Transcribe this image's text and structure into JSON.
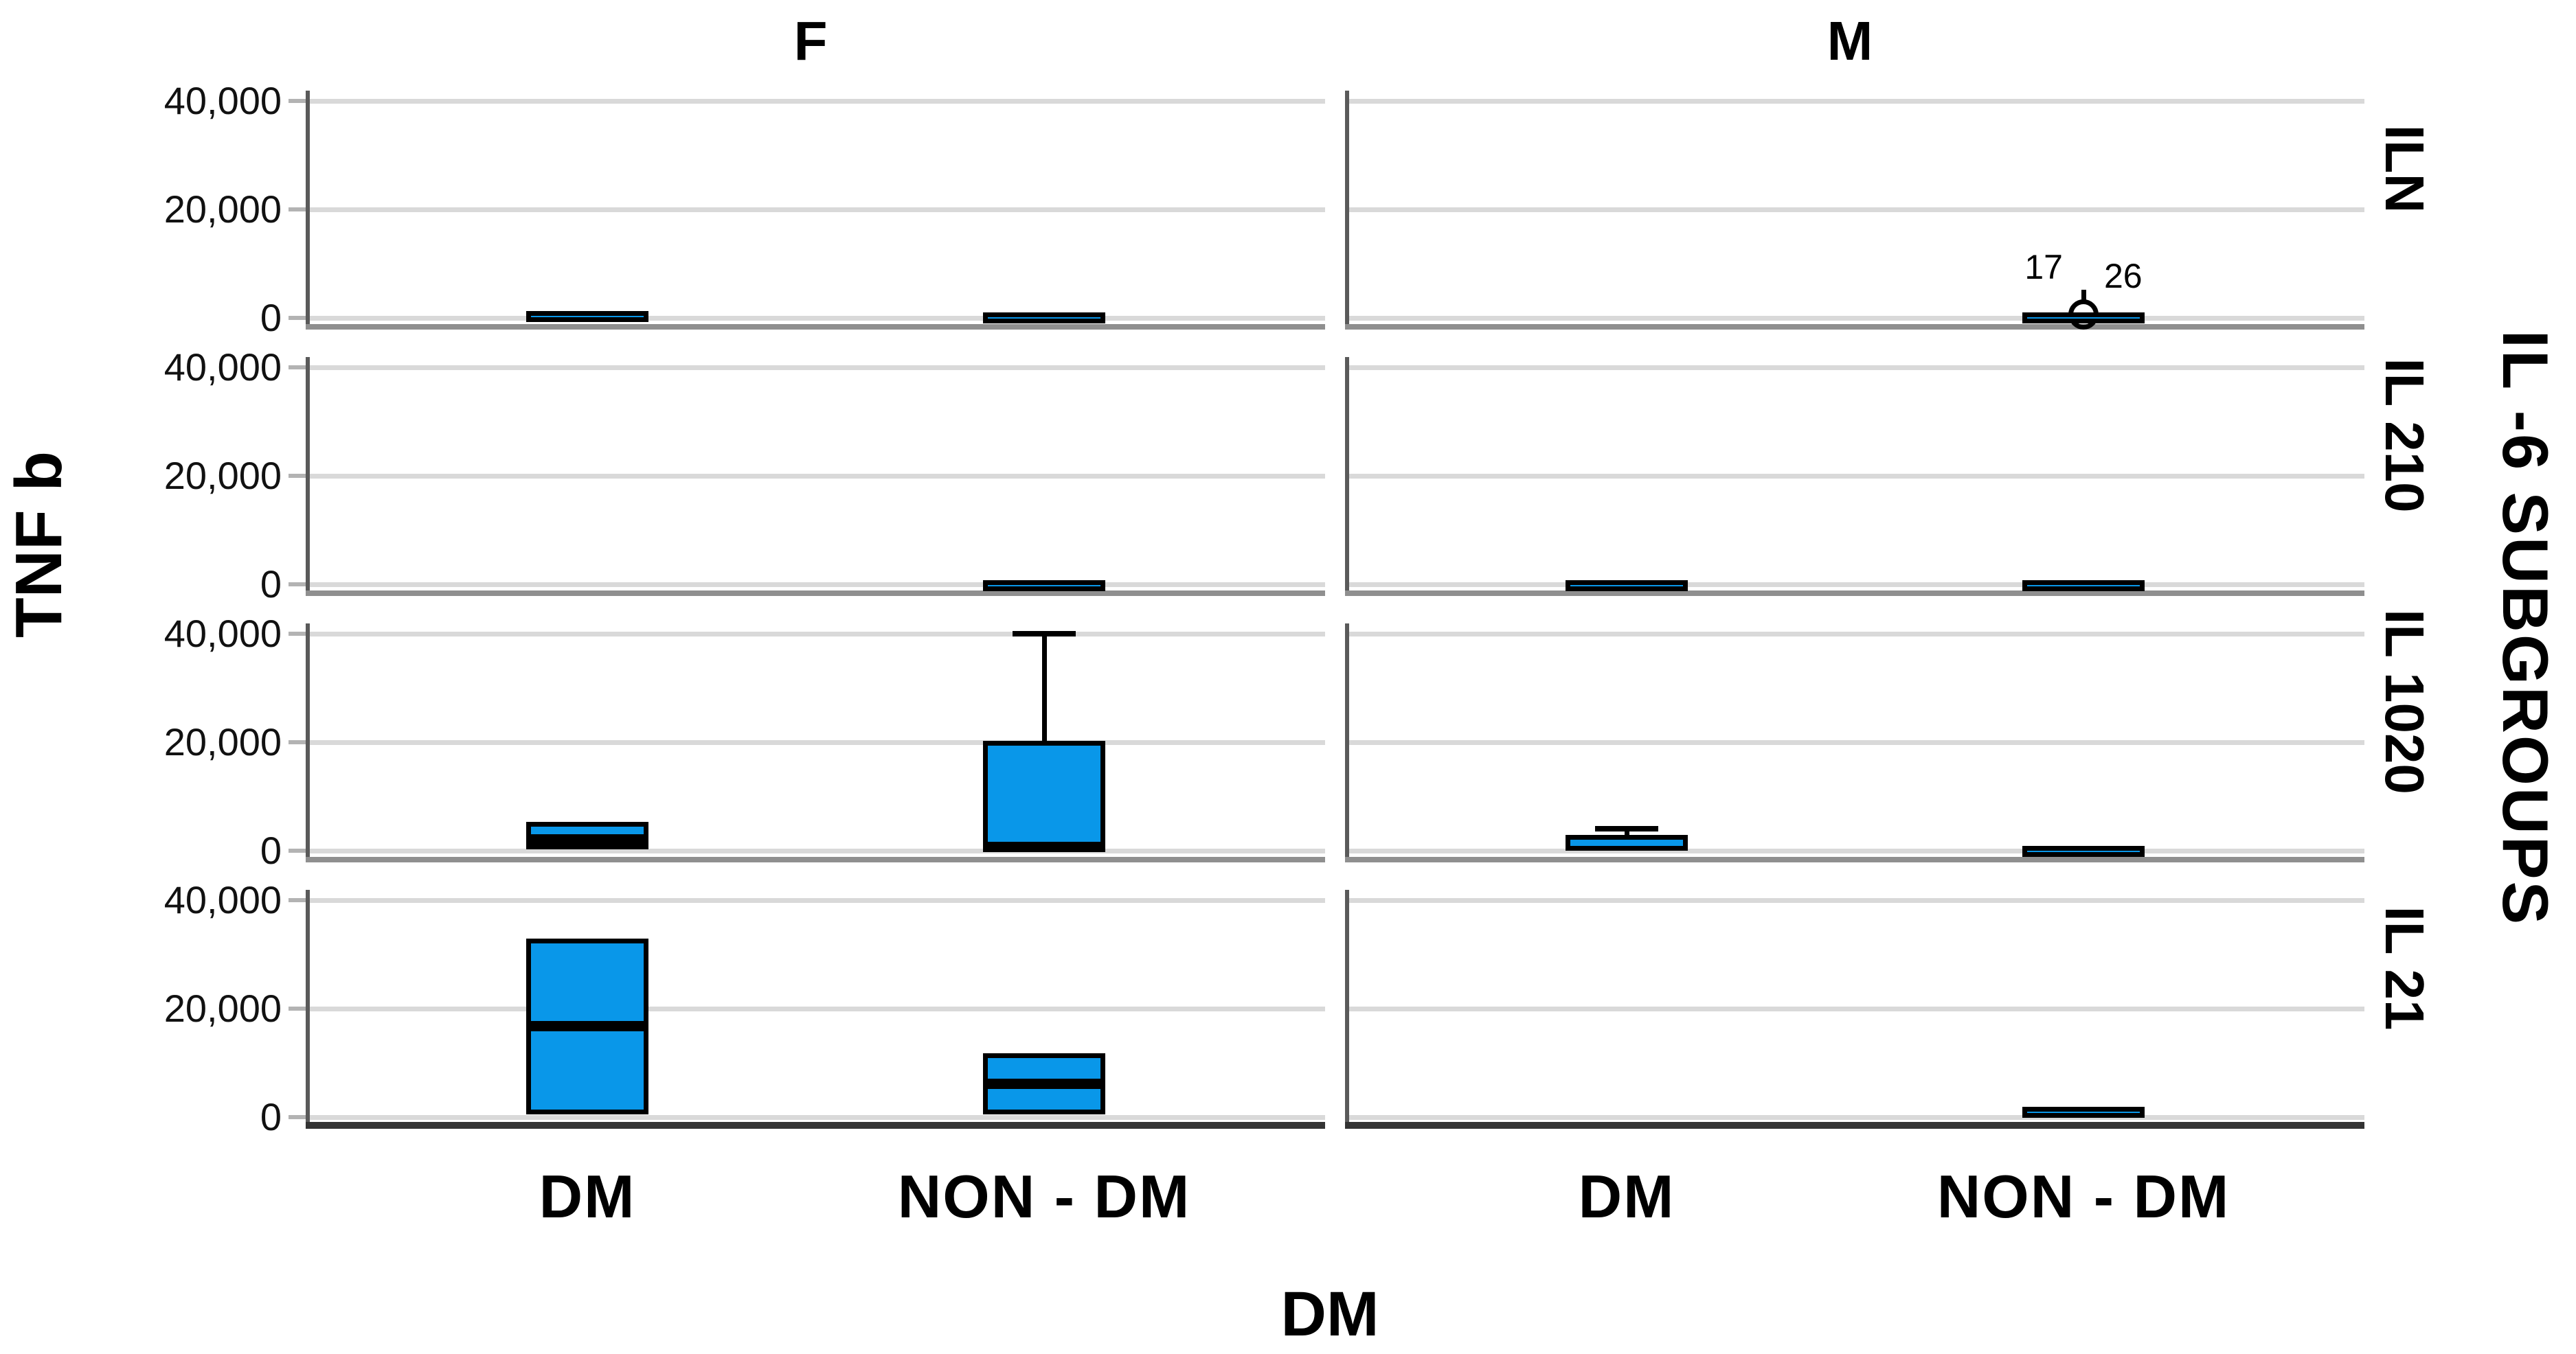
{
  "chart": {
    "y_axis_title": "TNF b",
    "x_axis_title": "DM",
    "panel_row_variable_label": "IL -6 SUBGROUPS",
    "column_titles": [
      "F",
      "M"
    ],
    "row_titles": [
      "ILN",
      "IL 210",
      "IL 1020",
      "IL 21"
    ],
    "category_labels": [
      "DM",
      "NON - DM"
    ],
    "y_tick_labels": [
      "40,000",
      "20,000",
      "0"
    ]
  },
  "colors": {
    "box_fill": "#0997e9",
    "box_border": "#000000",
    "gridline": "#d9d9d9",
    "panel_bottom_line": "#8f8f8f",
    "bottom_axis_line": "#333333",
    "axis_line": "#5a5a5a",
    "text": "#000000"
  },
  "chart_data": {
    "type": "boxplot",
    "title": "",
    "xlabel": "DM",
    "ylabel": "TNF b",
    "facet_columns": [
      "F",
      "M"
    ],
    "facet_rows": [
      "ILN",
      "IL 210",
      "IL 1020",
      "IL 21"
    ],
    "facet_row_variable": "IL -6 SUBGROUPS",
    "categories": [
      "DM",
      "NON - DM"
    ],
    "y_ticks": [
      40000,
      20000,
      0
    ],
    "y_tick_labels": [
      "40,000",
      "20,000",
      "0"
    ],
    "ylim": [
      -2200,
      41900
    ],
    "grid": "horizontal",
    "boxes": [
      {
        "col": "F",
        "row": "ILN",
        "category": "DM",
        "q1": 0,
        "median": 600,
        "q3": 1300
      },
      {
        "col": "F",
        "row": "ILN",
        "category": "NON - DM",
        "q1": 0,
        "median": 450,
        "q3": 950
      },
      {
        "col": "F",
        "row": "IL 210",
        "category": "NON - DM",
        "q1": 0,
        "median": 350,
        "q3": 800
      },
      {
        "col": "F",
        "row": "IL 1020",
        "category": "DM",
        "q1": 200,
        "median": 2100,
        "q3": 5300
      },
      {
        "col": "F",
        "row": "IL 1020",
        "category": "NON - DM",
        "q1": 300,
        "median": 800,
        "q3": 20200,
        "whisker_high": 40000
      },
      {
        "col": "F",
        "row": "IL 21",
        "category": "DM",
        "q1": 500,
        "median": 16800,
        "q3": 32900
      },
      {
        "col": "F",
        "row": "IL 21",
        "category": "NON - DM",
        "q1": 500,
        "median": 6200,
        "q3": 11800
      },
      {
        "col": "M",
        "row": "ILN",
        "category": "NON - DM",
        "q1": 0,
        "median": 450,
        "q3": 950,
        "outliers": [
          {
            "label": "17",
            "value": 600
          },
          {
            "label": "26",
            "value": 600
          }
        ]
      },
      {
        "col": "M",
        "row": "IL 210",
        "category": "DM",
        "q1": 0,
        "median": 350,
        "q3": 700
      },
      {
        "col": "M",
        "row": "IL 210",
        "category": "NON - DM",
        "q1": 0,
        "median": 350,
        "q3": 700
      },
      {
        "col": "M",
        "row": "IL 1020",
        "category": "DM",
        "q1": 0,
        "median": 1500,
        "q3": 2900,
        "whisker_high": 4100
      },
      {
        "col": "M",
        "row": "IL 1020",
        "category": "NON - DM",
        "q1": 0,
        "median": 450,
        "q3": 900
      },
      {
        "col": "M",
        "row": "IL 21",
        "category": "NON - DM",
        "q1": 200,
        "median": 1000,
        "q3": 1900
      }
    ],
    "outlier_annotations": [
      "17",
      "26"
    ]
  }
}
